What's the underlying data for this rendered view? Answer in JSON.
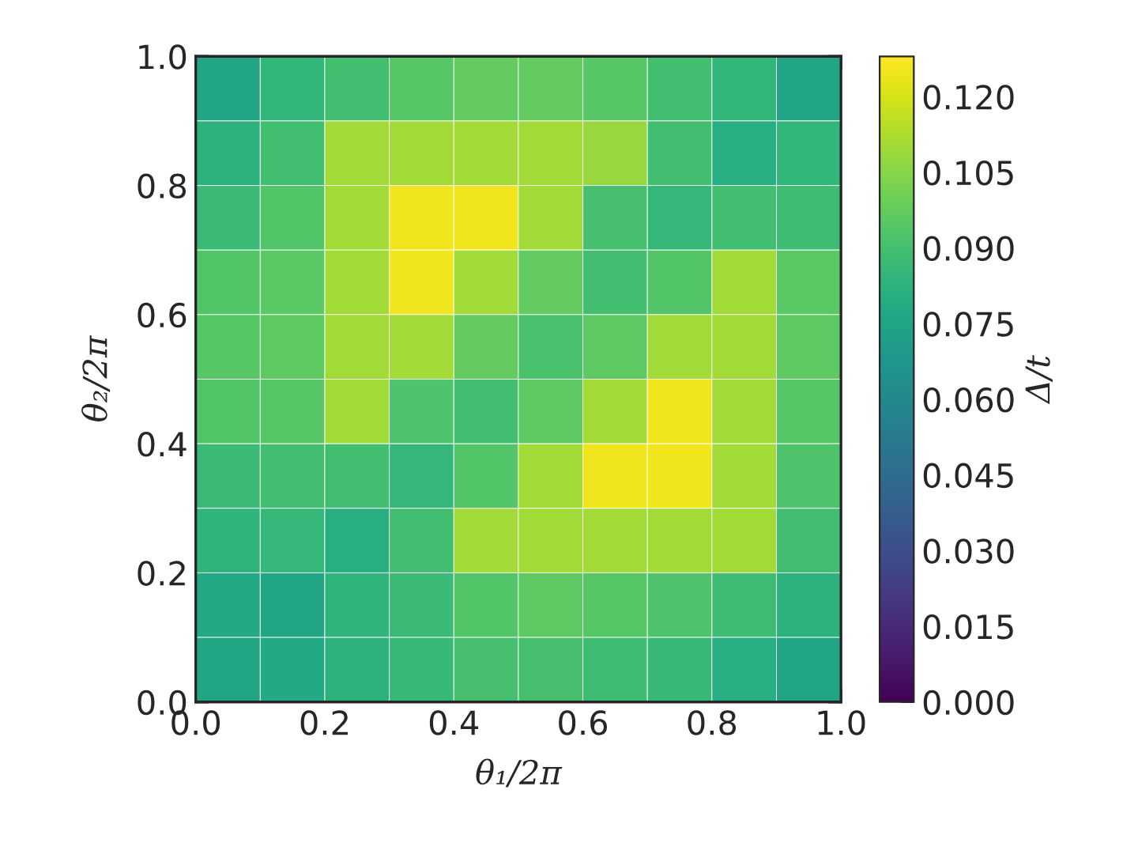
{
  "chart_data": {
    "type": "heatmap",
    "xlabel": "θ₁/2π",
    "ylabel": "θ₂/2π",
    "clabel": "Δ/t",
    "xlim": [
      0.0,
      1.0
    ],
    "ylim": [
      0.0,
      1.0
    ],
    "xticks": [
      {
        "value": 0.0,
        "label": "0.0"
      },
      {
        "value": 0.2,
        "label": "0.2"
      },
      {
        "value": 0.4,
        "label": "0.4"
      },
      {
        "value": 0.6,
        "label": "0.6"
      },
      {
        "value": 0.8,
        "label": "0.8"
      },
      {
        "value": 1.0,
        "label": "1.0"
      }
    ],
    "yticks": [
      {
        "value": 0.0,
        "label": "0.0"
      },
      {
        "value": 0.2,
        "label": "0.2"
      },
      {
        "value": 0.4,
        "label": "0.4"
      },
      {
        "value": 0.6,
        "label": "0.6"
      },
      {
        "value": 0.8,
        "label": "0.8"
      },
      {
        "value": 1.0,
        "label": "1.0"
      }
    ],
    "clim": [
      0.0,
      0.128
    ],
    "cticks": [
      {
        "value": 0.0,
        "label": "0.000"
      },
      {
        "value": 0.015,
        "label": "0.015"
      },
      {
        "value": 0.03,
        "label": "0.030"
      },
      {
        "value": 0.045,
        "label": "0.045"
      },
      {
        "value": 0.06,
        "label": "0.060"
      },
      {
        "value": 0.075,
        "label": "0.075"
      },
      {
        "value": 0.09,
        "label": "0.090"
      },
      {
        "value": 0.105,
        "label": "0.105"
      },
      {
        "value": 0.12,
        "label": "0.120"
      }
    ],
    "cells": [
      [
        0.075,
        0.084,
        0.089,
        0.094,
        0.097,
        0.097,
        0.094,
        0.089,
        0.084,
        0.075
      ],
      [
        0.082,
        0.089,
        0.11,
        0.11,
        0.11,
        0.11,
        0.108,
        0.089,
        0.08,
        0.084
      ],
      [
        0.087,
        0.093,
        0.11,
        0.125,
        0.125,
        0.11,
        0.09,
        0.085,
        0.089,
        0.088
      ],
      [
        0.093,
        0.095,
        0.11,
        0.125,
        0.11,
        0.097,
        0.089,
        0.093,
        0.11,
        0.095
      ],
      [
        0.094,
        0.096,
        0.11,
        0.11,
        0.097,
        0.091,
        0.096,
        0.11,
        0.11,
        0.096
      ],
      [
        0.093,
        0.094,
        0.11,
        0.092,
        0.089,
        0.096,
        0.11,
        0.125,
        0.11,
        0.094
      ],
      [
        0.087,
        0.089,
        0.089,
        0.085,
        0.093,
        0.11,
        0.125,
        0.125,
        0.11,
        0.092
      ],
      [
        0.083,
        0.085,
        0.08,
        0.089,
        0.11,
        0.11,
        0.11,
        0.11,
        0.11,
        0.089
      ],
      [
        0.077,
        0.075,
        0.083,
        0.087,
        0.093,
        0.096,
        0.094,
        0.092,
        0.088,
        0.082
      ],
      [
        0.075,
        0.077,
        0.082,
        0.086,
        0.09,
        0.09,
        0.088,
        0.086,
        0.08,
        0.075
      ]
    ]
  }
}
